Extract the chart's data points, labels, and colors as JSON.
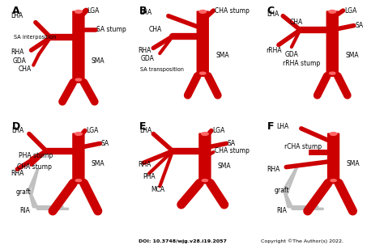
{
  "background_color": "#ffffff",
  "artery_color": "#cc0000",
  "artery_light": "#ff6666",
  "graft_color": "#c0c0c0",
  "text_color": "#000000",
  "label_fontsize": 5.5,
  "panel_label_fontsize": 9,
  "doi_text": "DOI: 10.3748/wjg.v28.i19.2057",
  "copyright_text": "Copyright ©The Author(s) 2022.",
  "panels": [
    "A",
    "B",
    "C",
    "D",
    "E",
    "F"
  ]
}
